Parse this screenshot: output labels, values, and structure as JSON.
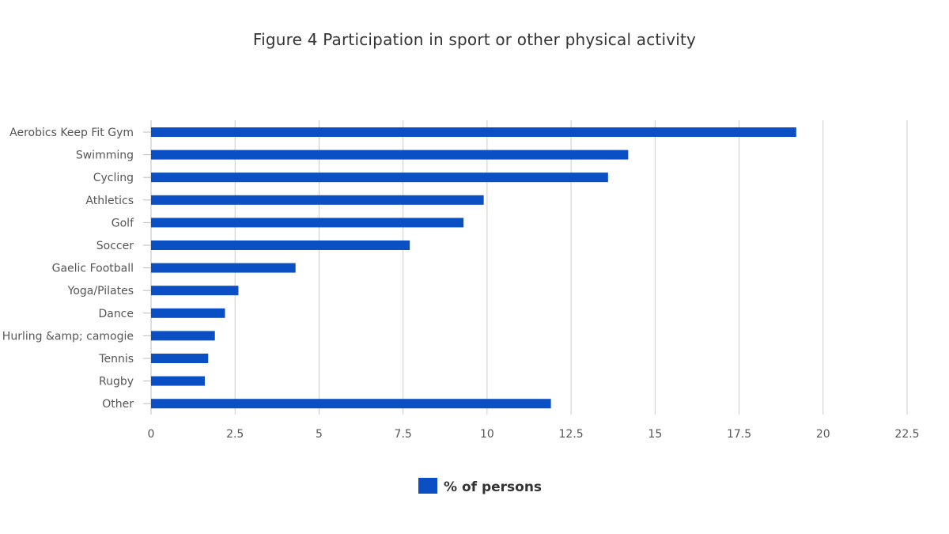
{
  "chart_data": {
    "type": "bar",
    "orientation": "horizontal",
    "title": "Figure 4 Participation in sport or other physical activity",
    "xlabel": "",
    "ylabel": "",
    "categories": [
      "Aerobics Keep Fit Gym",
      "Swimming",
      "Cycling",
      "Athletics",
      "Golf",
      "Soccer",
      "Gaelic Football",
      "Yoga/Pilates",
      "Dance",
      "Hurling &amp; camogie",
      "Tennis",
      "Rugby",
      "Other"
    ],
    "series": [
      {
        "name": "% of persons",
        "color": "#0b4fc4",
        "values": [
          19.2,
          14.2,
          13.6,
          9.9,
          9.3,
          7.7,
          4.3,
          2.6,
          2.2,
          1.9,
          1.7,
          1.6,
          11.9
        ]
      }
    ],
    "xlim": [
      0,
      22.5
    ],
    "xticks": [
      "0",
      "2.5",
      "5",
      "7.5",
      "10",
      "12.5",
      "15",
      "17.5",
      "20",
      "22.5"
    ],
    "grid": true,
    "legend_position": "bottom"
  }
}
